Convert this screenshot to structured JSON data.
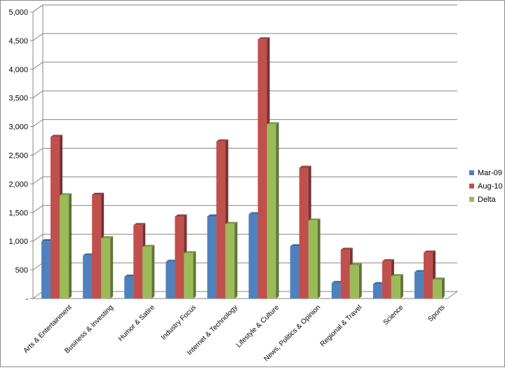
{
  "chart_data": {
    "type": "bar",
    "categories": [
      "Arts & Entertainment",
      "Business & Investing",
      "Humor & Satire",
      "Industry Focus",
      "Internet & Technology",
      "Lifestyle & Culture",
      "News, Politics & Opinion",
      "Regional & Travel",
      "Science",
      "Sports"
    ],
    "series": [
      {
        "name": "Mar-09",
        "color": "#4f81bd",
        "values": [
          1000,
          750,
          380,
          640,
          1430,
          1470,
          910,
          270,
          250,
          460
        ]
      },
      {
        "name": "Aug-10",
        "color": "#c0504d",
        "values": [
          2820,
          1810,
          1280,
          1430,
          2740,
          4520,
          2280,
          850,
          650,
          800
        ]
      },
      {
        "name": "Delta",
        "color": "#9bbb59",
        "values": [
          1800,
          1050,
          900,
          790,
          1300,
          3040,
          1360,
          580,
          390,
          330
        ]
      }
    ],
    "y_ticks": [
      "-",
      "500",
      "1,000",
      "1,500",
      "2,000",
      "2,500",
      "3,000",
      "3,500",
      "4,000",
      "4,500",
      "5,000"
    ],
    "ylim": [
      0,
      5000
    ],
    "grid": true,
    "legend_position": "right"
  }
}
